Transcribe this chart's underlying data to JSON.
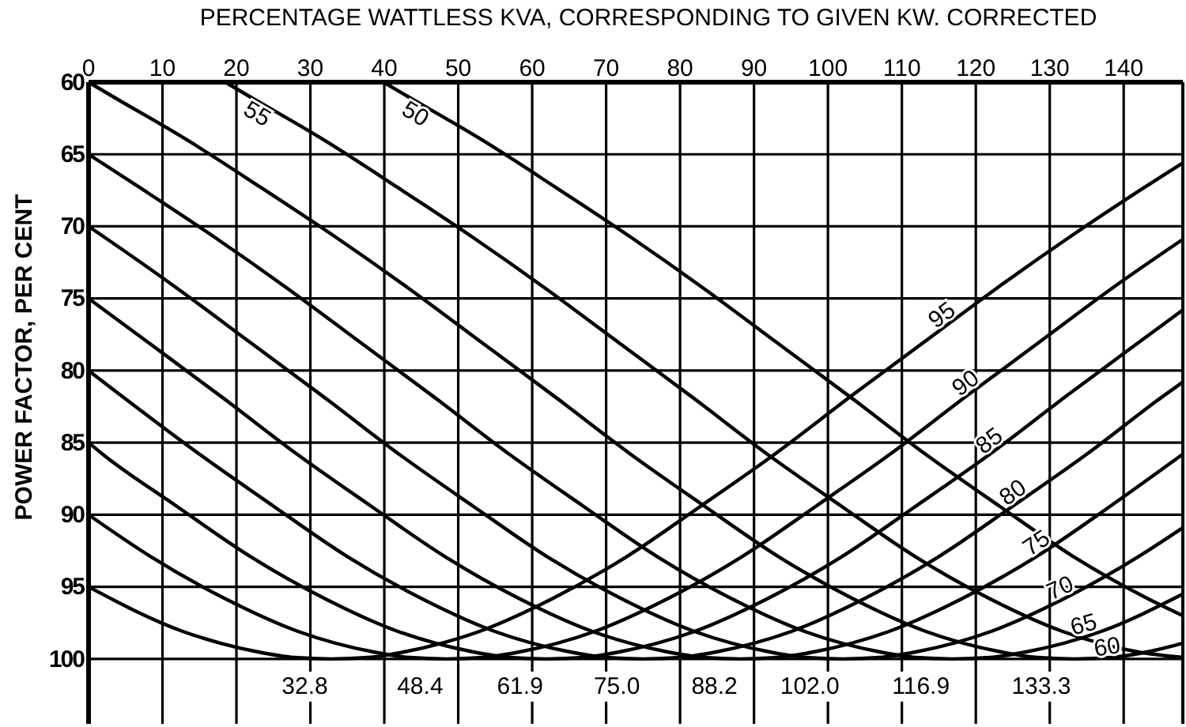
{
  "chart_data": {
    "type": "line",
    "xlabel": "PERCENTAGE WATTLESS KVA, CORRESPONDING TO GIVEN KW. CORRECTED",
    "ylabel": "POWER FACTOR, PER CENT",
    "xlim": [
      0,
      148
    ],
    "xticks": [
      0,
      10,
      20,
      30,
      40,
      50,
      60,
      70,
      80,
      90,
      100,
      110,
      120,
      130,
      140
    ],
    "ylim": [
      104.5,
      60
    ],
    "yticks": [
      60,
      65,
      70,
      75,
      80,
      85,
      90,
      95,
      100
    ],
    "grid": true,
    "line_style": "solid",
    "series": [
      {
        "name": "55",
        "color": "#000000",
        "x": [
          18.5,
          21.8,
          31.8,
          41.8,
          51.8,
          61.8,
          71.8,
          81.8,
          91.8,
          101.8,
          111.8,
          121.8,
          131.8,
          141.8,
          148
        ],
        "values": [
          60,
          61.0,
          64.0,
          67.3,
          70.7,
          74.3,
          78.1,
          81.9,
          85.8,
          89.4,
          92.9,
          95.8,
          98.1,
          99.5,
          99.9
        ]
      },
      {
        "name": "50",
        "color": "#000000",
        "x": [
          39.9,
          43.2,
          53.2,
          63.2,
          73.2,
          83.2,
          93.2,
          103.2,
          113.2,
          123.2,
          133.2,
          143.2,
          148
        ],
        "values": [
          60,
          61.0,
          64.0,
          67.3,
          70.7,
          74.3,
          78.1,
          81.9,
          85.8,
          89.4,
          92.9,
          95.8,
          97.0
        ]
      },
      {
        "name": "95",
        "color": "#000000",
        "x": [
          0,
          12.8,
          17.8,
          22.8,
          27.8,
          32.8,
          37.8,
          42.8,
          47.8,
          52.8,
          62.8,
          72.8,
          82.8,
          92.8,
          102.8,
          112.8,
          122.8,
          132.8,
          142.8,
          148
        ],
        "values": [
          95,
          98.1,
          98.9,
          99.5,
          99.9,
          100,
          99.9,
          99.5,
          98.9,
          98.1,
          95.8,
          92.9,
          89.4,
          85.8,
          81.9,
          78.1,
          74.3,
          70.7,
          67.3,
          65.6
        ]
      },
      {
        "name": "90",
        "color": "#000000",
        "x": [
          0,
          8.4,
          18.4,
          28.4,
          38.4,
          43.4,
          48.4,
          53.4,
          58.4,
          68.4,
          78.4,
          88.4,
          98.4,
          108.4,
          118.4,
          128.4,
          138.4,
          148
        ],
        "values": [
          90,
          92.9,
          95.8,
          98.1,
          99.5,
          99.9,
          100,
          99.9,
          99.5,
          98.1,
          95.8,
          92.9,
          89.4,
          85.8,
          81.9,
          78.1,
          74.3,
          70.9
        ]
      },
      {
        "name": "85",
        "color": "#000000",
        "x": [
          0,
          1.9,
          11.9,
          21.9,
          31.9,
          41.9,
          51.9,
          56.9,
          61.9,
          66.9,
          71.9,
          81.9,
          91.9,
          101.9,
          111.9,
          121.9,
          131.9,
          141.9,
          148
        ],
        "values": [
          85,
          85.8,
          89.4,
          92.9,
          95.8,
          98.1,
          99.5,
          99.9,
          100,
          99.9,
          99.5,
          98.1,
          95.8,
          92.9,
          89.4,
          85.8,
          81.9,
          78.1,
          75.8
        ]
      },
      {
        "name": "80",
        "color": "#000000",
        "x": [
          0,
          15,
          25,
          35,
          45,
          55,
          65,
          70,
          75,
          80,
          85,
          95,
          105,
          115,
          125,
          135,
          145,
          148
        ],
        "values": [
          80,
          85.8,
          89.4,
          92.9,
          95.8,
          98.1,
          99.5,
          99.9,
          100,
          99.9,
          99.5,
          98.1,
          95.8,
          92.9,
          89.4,
          85.8,
          81.9,
          80.8
        ]
      },
      {
        "name": "75",
        "color": "#000000",
        "x": [
          0,
          8.2,
          18.2,
          28.2,
          38.2,
          48.2,
          58.2,
          68.2,
          78.2,
          83.2,
          88.2,
          93.2,
          98.2,
          108.2,
          118.2,
          128.2,
          138.2,
          148
        ],
        "values": [
          75,
          78.1,
          81.9,
          85.8,
          89.4,
          92.9,
          95.8,
          98.1,
          99.5,
          99.9,
          100,
          99.9,
          99.5,
          98.1,
          95.8,
          92.9,
          89.4,
          85.8
        ]
      },
      {
        "name": "70",
        "color": "#000000",
        "x": [
          0,
          2,
          12,
          22,
          32,
          42,
          52,
          62,
          72,
          82,
          92,
          97,
          102,
          107,
          112,
          122,
          132,
          142,
          148
        ],
        "values": [
          70,
          70.7,
          74.3,
          78.1,
          81.9,
          85.8,
          89.4,
          92.9,
          95.8,
          98.1,
          99.5,
          99.9,
          100,
          99.9,
          99.5,
          98.1,
          95.8,
          92.9,
          90.9
        ]
      },
      {
        "name": "65",
        "color": "#000000",
        "x": [
          0,
          6.9,
          16.9,
          26.9,
          36.9,
          46.9,
          56.9,
          66.9,
          76.9,
          86.9,
          96.9,
          106.9,
          111.9,
          116.9,
          121.9,
          126.9,
          136.9,
          148
        ],
        "values": [
          65,
          67.3,
          70.7,
          74.3,
          78.1,
          81.9,
          85.8,
          89.4,
          92.9,
          95.8,
          98.1,
          99.5,
          99.9,
          100,
          99.9,
          99.5,
          98.1,
          95.5
        ]
      },
      {
        "name": "60",
        "color": "#000000",
        "x": [
          0,
          3.3,
          13.3,
          23.3,
          33.3,
          43.3,
          53.3,
          63.3,
          73.3,
          83.3,
          93.3,
          103.3,
          113.3,
          123.3,
          128.3,
          133.3,
          138.3,
          143.3,
          148
        ],
        "values": [
          60,
          61.0,
          64.0,
          67.3,
          70.7,
          74.3,
          78.1,
          81.9,
          85.8,
          89.4,
          92.9,
          95.8,
          98.1,
          99.5,
          99.9,
          100,
          99.9,
          99.5,
          98.9
        ]
      }
    ],
    "annotations": [
      {
        "text": "32.8",
        "x": 32.8,
        "y": 100
      },
      {
        "text": "48.4",
        "x": 48.4,
        "y": 100
      },
      {
        "text": "61.9",
        "x": 61.9,
        "y": 100
      },
      {
        "text": "75.0",
        "x": 75.0,
        "y": 100
      },
      {
        "text": "88.2",
        "x": 88.2,
        "y": 100
      },
      {
        "text": "102.0",
        "x": 102.0,
        "y": 100
      },
      {
        "text": "116.9",
        "x": 116.9,
        "y": 100
      },
      {
        "text": "133.3",
        "x": 133.3,
        "y": 100
      }
    ]
  }
}
